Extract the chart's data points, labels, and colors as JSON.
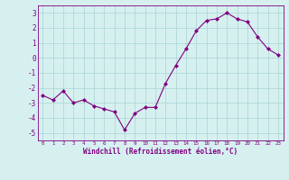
{
  "x": [
    0,
    1,
    2,
    3,
    4,
    5,
    6,
    7,
    8,
    9,
    10,
    11,
    12,
    13,
    14,
    15,
    16,
    17,
    18,
    19,
    20,
    21,
    22,
    23
  ],
  "y": [
    -2.5,
    -2.8,
    -2.2,
    -3.0,
    -2.8,
    -3.2,
    -3.4,
    -3.6,
    -4.8,
    -3.7,
    -3.3,
    -3.3,
    -1.7,
    -0.5,
    0.6,
    1.8,
    2.5,
    2.6,
    3.0,
    2.6,
    2.4,
    1.4,
    0.6,
    0.2
  ],
  "line_color": "#800080",
  "marker": "D",
  "marker_size": 2.0,
  "bg_color": "#d6f0f0",
  "grid_color": "#b0d8d8",
  "xlabel": "Windchill (Refroidissement éolien,°C)",
  "ylim": [
    -5.5,
    3.5
  ],
  "xlim": [
    -0.5,
    23.5
  ],
  "yticks": [
    -5,
    -4,
    -3,
    -2,
    -1,
    0,
    1,
    2,
    3
  ],
  "xticks": [
    0,
    1,
    2,
    3,
    4,
    5,
    6,
    7,
    8,
    9,
    10,
    11,
    12,
    13,
    14,
    15,
    16,
    17,
    18,
    19,
    20,
    21,
    22,
    23
  ],
  "tick_color": "#800080",
  "label_color": "#800080"
}
